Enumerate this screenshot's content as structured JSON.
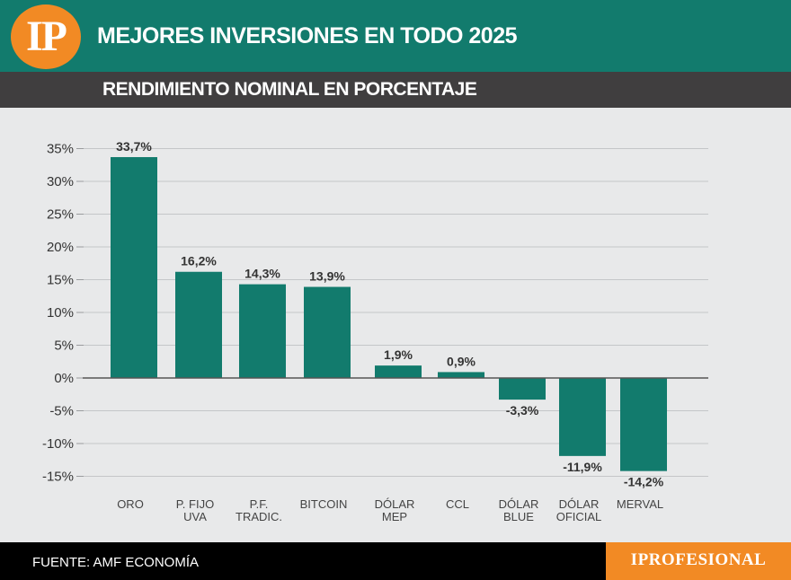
{
  "header": {
    "logo_text": "IP",
    "title": "MEJORES INVERSIONES EN TODO 2025"
  },
  "subheader": {
    "title": "RENDIMIENTO NOMINAL EN PORCENTAJE"
  },
  "footer": {
    "source": "FUENTE: AMF ECONOMÍA",
    "brand": "IPROFESIONAL"
  },
  "colors": {
    "header": "#127b6d",
    "subheader": "#403e3f",
    "bar": "#127b6d",
    "accent": "#f28a24",
    "background": "#e8e9ea"
  },
  "chart_data": {
    "type": "bar",
    "title": "",
    "xlabel": "",
    "ylabel": "",
    "categories": [
      [
        "ORO"
      ],
      [
        "P. FIJO",
        "UVA"
      ],
      [
        "P.F.",
        "TRADIC."
      ],
      [
        "BITCOIN"
      ],
      [
        "DÓLAR",
        "MEP"
      ],
      [
        "CCL"
      ],
      [
        "DÓLAR",
        "BLUE"
      ],
      [
        "DÓLAR",
        "OFICIAL"
      ],
      [
        "MERVAL"
      ]
    ],
    "values": [
      33.7,
      16.2,
      14.3,
      13.9,
      1.9,
      0.9,
      -3.3,
      -11.9,
      -14.2
    ],
    "value_labels": [
      "33,7%",
      "16,2%",
      "14,3%",
      "13,9%",
      "1,9%",
      "0,9%",
      "-3,3%",
      "-11,9%",
      "-14,2%"
    ],
    "y_ticks": [
      35,
      30,
      25,
      20,
      15,
      10,
      5,
      0,
      -5,
      -10,
      -15
    ],
    "y_tick_labels": [
      "35%",
      "30%",
      "25%",
      "20%",
      "15%",
      "10%",
      "5%",
      "0%",
      "-5%",
      "-10%",
      "-15%"
    ],
    "ylim": [
      -15,
      35
    ],
    "grid": true,
    "legend": "none"
  }
}
